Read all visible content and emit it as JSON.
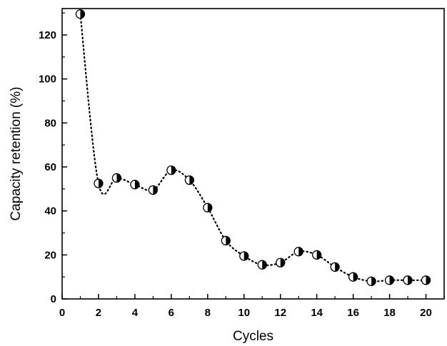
{
  "chart_data": {
    "type": "scatter",
    "title": "",
    "xlabel": "Cycles",
    "ylabel": "Capacity retention (%)",
    "xlim": [
      0,
      21
    ],
    "ylim": [
      0,
      132
    ],
    "xticks": [
      0,
      2,
      4,
      6,
      8,
      10,
      12,
      14,
      16,
      18,
      20
    ],
    "yticks": [
      0,
      20,
      40,
      60,
      80,
      100,
      120
    ],
    "grid": false,
    "legend": "none",
    "line_style": "dotted-smooth",
    "marker": "half-filled-circle",
    "colors": {
      "marker": "#000000",
      "line": "#000000",
      "background": "#ffffff"
    },
    "x": [
      1,
      2,
      3,
      4,
      5,
      6,
      7,
      8,
      9,
      10,
      11,
      12,
      13,
      14,
      15,
      16,
      17,
      18,
      19,
      20
    ],
    "series": [
      {
        "values": [
          129.5,
          52.5,
          55,
          52,
          49.5,
          58.5,
          54,
          41.5,
          26.5,
          19.5,
          15.5,
          16.5,
          21.5,
          20,
          14.5,
          10,
          8,
          8.5,
          8.5,
          8.5
        ]
      }
    ]
  }
}
